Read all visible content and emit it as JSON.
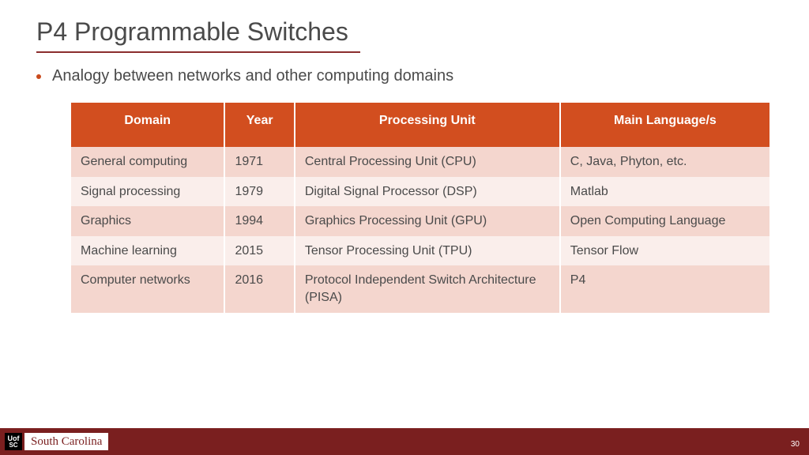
{
  "title": "P4 Programmable Switches",
  "bullet": "Analogy between networks and other computing domains",
  "table": {
    "type": "table",
    "header_bg": "#d24e1f",
    "header_fg": "#ffffff",
    "row_odd_bg": "#f4d6ce",
    "row_even_bg": "#faeeeb",
    "text_color": "#4a4a4a",
    "font_size_pt": 16,
    "columns": [
      {
        "label": "Domain",
        "width_pct": 22,
        "align": "left"
      },
      {
        "label": "Year",
        "width_pct": 10,
        "align": "left"
      },
      {
        "label": "Processing Unit",
        "width_pct": 38,
        "align": "left"
      },
      {
        "label": "Main Language/s",
        "width_pct": 30,
        "align": "left"
      }
    ],
    "rows": [
      [
        "General computing",
        "1971",
        "Central Processing Unit (CPU)",
        "C, Java, Phyton, etc."
      ],
      [
        "Signal processing",
        "1979",
        "Digital Signal Processor (DSP)",
        "Matlab"
      ],
      [
        "Graphics",
        "1994",
        "Graphics Processing Unit (GPU)",
        "Open Computing Language"
      ],
      [
        "Machine learning",
        "2015",
        "Tensor Processing Unit (TPU)",
        "Tensor Flow"
      ],
      [
        "Computer networks",
        "2016",
        "Protocol Independent Switch Architecture (PISA)",
        "P4"
      ]
    ]
  },
  "footer": {
    "bg": "#7a1f1f",
    "logo_square_top": "Uof",
    "logo_square_bottom": "SC",
    "logo_text": "South Carolina",
    "page_number": "30"
  },
  "colors": {
    "title_text": "#4a4a4a",
    "underline": "#8b2e2e",
    "bullet_dot": "#c94a1c",
    "background": "#ffffff"
  }
}
